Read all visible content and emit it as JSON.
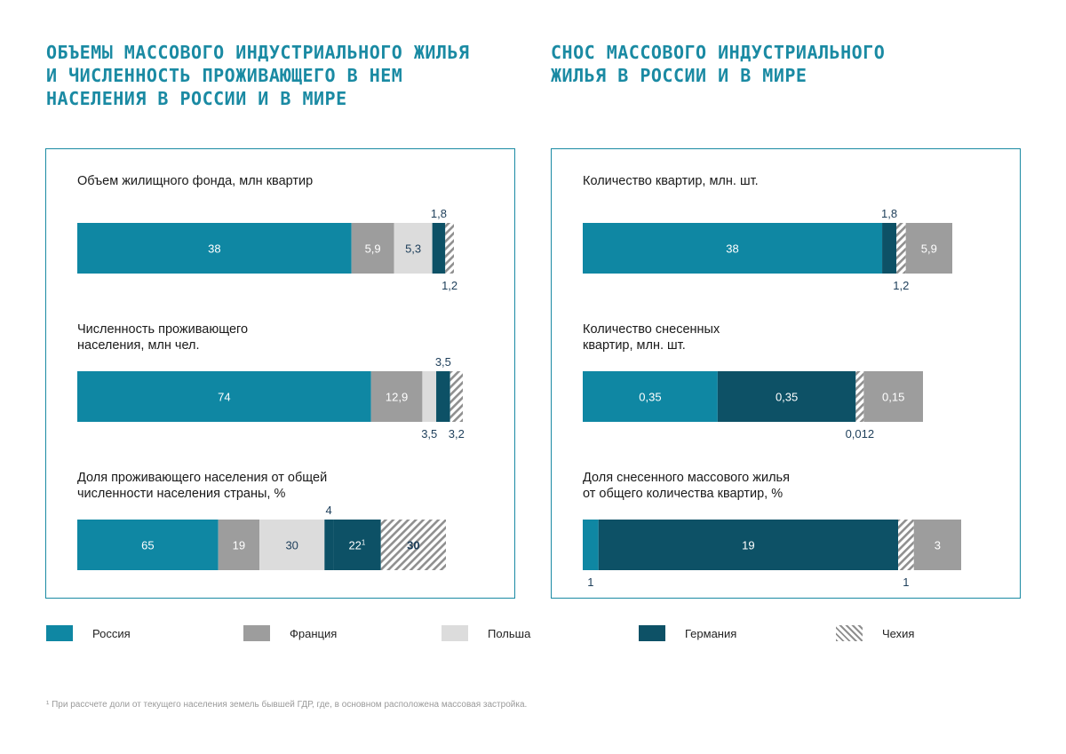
{
  "left_panel": {
    "title_lines": [
      "ОБЪЕМЫ МАССОВОГО ИНДУСТРИАЛЬНОГО ЖИЛЬЯ",
      "И ЧИСЛЕННОСТЬ ПРОЖИВАЮЩЕГО В НЕМ",
      "НАСЕЛЕНИЯ В РОССИИ И В МИРЕ"
    ]
  },
  "right_panel": {
    "title_lines": [
      "СНОС МАССОВОГО ИНДУСТРИАЛЬНОГО",
      "ЖИЛЬЯ В РОССИИ И В МИРЕ"
    ]
  },
  "colors": {
    "Россия": "#0f87a3",
    "Франция": "#9d9d9d",
    "Польша": "#dcdcdc",
    "Германия": "#0d5166",
    "Чехия": "hatch"
  },
  "legend": [
    {
      "name": "Россия",
      "color": "#0f87a3"
    },
    {
      "name": "Франция",
      "color": "#9d9d9d"
    },
    {
      "name": "Польша",
      "color": "#dcdcdc"
    },
    {
      "name": "Германия",
      "color": "#0d5166"
    },
    {
      "name": "Чехия",
      "color": "hatch"
    }
  ],
  "chart_data": [
    {
      "type": "bar",
      "orientation": "horizontal-stacked",
      "panel": "left",
      "title": "Объем жилищного фонда, млн квартир",
      "segments": [
        {
          "country": "Россия",
          "value": 38,
          "label": "38"
        },
        {
          "country": "Франция",
          "value": 5.9,
          "label": "5,9"
        },
        {
          "country": "Польша",
          "value": 5.3,
          "label": "5,3"
        },
        {
          "country": "Германия",
          "value": 1.8,
          "label": "1,8"
        },
        {
          "country": "Чехия",
          "value": 1.2,
          "label": "1,2"
        }
      ]
    },
    {
      "type": "bar",
      "orientation": "horizontal-stacked",
      "panel": "left",
      "title": "Численность проживающего населения, млн чел.",
      "segments": [
        {
          "country": "Россия",
          "value": 74,
          "label": "74"
        },
        {
          "country": "Франция",
          "value": 12.9,
          "label": "12,9"
        },
        {
          "country": "Польша",
          "value": 3.5,
          "label": "3,5"
        },
        {
          "country": "Германия",
          "value": 3.5,
          "label": "3,5"
        },
        {
          "country": "Чехия",
          "value": 3.2,
          "label": "3,2"
        }
      ]
    },
    {
      "type": "bar",
      "orientation": "horizontal-stacked",
      "panel": "left",
      "title": "Доля проживающего населения от общей численности населения страны, %",
      "segments": [
        {
          "country": "Россия",
          "value": 65,
          "label": "65"
        },
        {
          "country": "Франция",
          "value": 19,
          "label": "19"
        },
        {
          "country": "Польша",
          "value": 30,
          "label": "30"
        },
        {
          "country": "Германия",
          "value": 4,
          "label": "4"
        },
        {
          "country": "Германия",
          "value": 22,
          "label": "22",
          "footnote_mark": "1"
        },
        {
          "country": "Чехия",
          "value": 30,
          "label": "30"
        }
      ]
    },
    {
      "type": "bar",
      "orientation": "horizontal-stacked",
      "panel": "right",
      "title": "Количество квартир, млн. шт.",
      "segments": [
        {
          "country": "Россия",
          "value": 38,
          "label": "38"
        },
        {
          "country": "Германия",
          "value": 1.8,
          "label": "1,8"
        },
        {
          "country": "Чехия",
          "value": 1.2,
          "label": "1,2"
        },
        {
          "country": "Франция",
          "value": 5.9,
          "label": "5,9"
        }
      ]
    },
    {
      "type": "bar",
      "orientation": "horizontal-stacked",
      "panel": "right",
      "title": "Количество снесенных квартир, млн. шт.",
      "segments": [
        {
          "country": "Россия",
          "value": 0.35,
          "label": "0,35"
        },
        {
          "country": "Германия",
          "value": 0.35,
          "label": "0,35"
        },
        {
          "country": "Чехия",
          "value": 0.012,
          "label": "0,012"
        },
        {
          "country": "Франция",
          "value": 0.15,
          "label": "0,15"
        }
      ]
    },
    {
      "type": "bar",
      "orientation": "horizontal-stacked",
      "panel": "right",
      "title": "Доля снесенного массового жилья от общего количества квартир, %",
      "segments": [
        {
          "country": "Россия",
          "value": 1,
          "label": "1"
        },
        {
          "country": "Германия",
          "value": 19,
          "label": "19"
        },
        {
          "country": "Чехия",
          "value": 1,
          "label": "1"
        },
        {
          "country": "Франция",
          "value": 3,
          "label": "3"
        }
      ]
    }
  ],
  "footnote": "¹ При рассчете доли от текущего населения земель бывшей ГДР, где, в основном расположена массовая застройка."
}
